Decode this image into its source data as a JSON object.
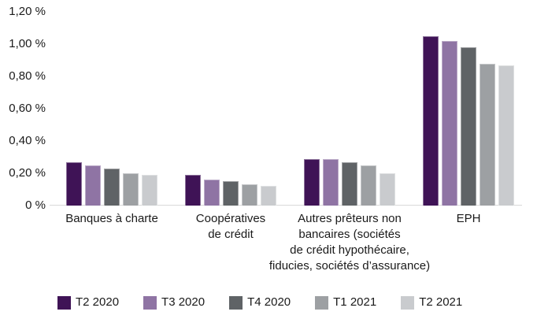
{
  "chart_data": {
    "type": "bar",
    "title": "",
    "xlabel": "",
    "ylabel": "",
    "unit": "%",
    "ylim": [
      0,
      1.2
    ],
    "grid": false,
    "legend_position": "bottom",
    "axis_line_color": "#d9d9d9",
    "text_color": "#1a1a1a",
    "y_tick_labels": [
      "1,20 %",
      "1,00 %",
      "0,80 %",
      "0,60 %",
      "0,40 %",
      "0,20 %",
      "0 %"
    ],
    "categories": [
      {
        "label": "Banques à charte",
        "lines": [
          "Banques à charte"
        ]
      },
      {
        "label": "Coopératives de crédit",
        "lines": [
          "Coopératives",
          "de crédit"
        ]
      },
      {
        "label": "Autres prêteurs non bancaires (sociétés de crédit hypothécaire, fiducies, sociétés d’assurance)",
        "lines": [
          "Autres prêteurs non",
          "bancaires (sociétés",
          "de crédit hypothécaire,",
          "fiducies, sociétés d’assurance)"
        ]
      },
      {
        "label": "EPH",
        "lines": [
          "EPH"
        ]
      }
    ],
    "series": [
      {
        "name": "T2 2020",
        "color": "#3f1356",
        "values": [
          0.27,
          0.19,
          0.29,
          1.05
        ]
      },
      {
        "name": "T3 2020",
        "color": "#8f74a4",
        "values": [
          0.25,
          0.16,
          0.29,
          1.02
        ]
      },
      {
        "name": "T4 2020",
        "color": "#5f6366",
        "values": [
          0.23,
          0.15,
          0.27,
          0.98
        ]
      },
      {
        "name": "T1 2021",
        "color": "#9da0a3",
        "values": [
          0.2,
          0.13,
          0.25,
          0.88
        ]
      },
      {
        "name": "T2 2021",
        "color": "#c9cbce",
        "values": [
          0.19,
          0.12,
          0.2,
          0.87
        ]
      }
    ]
  }
}
